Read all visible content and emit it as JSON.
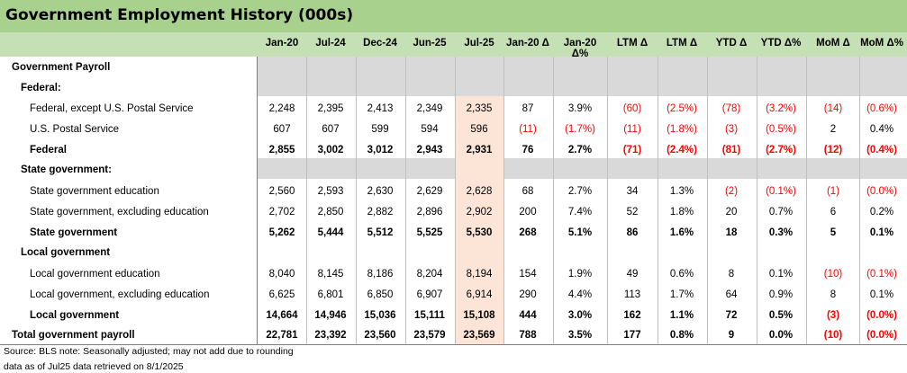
{
  "title": "Government Employment History (000s)",
  "columns": [
    "Jan-20",
    "Jul-24",
    "Dec-24",
    "Jun-25",
    "Jul-25",
    "Jan-20 Δ",
    "Jan-20 Δ%",
    "LTM Δ",
    "LTM Δ",
    "YTD Δ",
    "YTD Δ%",
    "MoM Δ",
    "MoM Δ%"
  ],
  "labels": {
    "gov_payroll": "Government Payroll",
    "federal_section": "Federal:",
    "state_section": "State government:",
    "local_section": "Local government"
  },
  "rows": [
    {
      "label": "Federal, except U.S. Postal Service",
      "bold": false,
      "values": [
        "2,248",
        "2,395",
        "2,413",
        "2,349",
        "2,335",
        "87",
        "3.9%",
        "(60)",
        "(2.5%)",
        "(78)",
        "(3.2%)",
        "(14)",
        "(0.6%)"
      ]
    },
    {
      "label": "U.S. Postal Service",
      "bold": false,
      "values": [
        "607",
        "607",
        "599",
        "594",
        "596",
        "(11)",
        "(1.7%)",
        "(11)",
        "(1.8%)",
        "(3)",
        "(0.5%)",
        "2",
        "0.4%"
      ]
    },
    {
      "label": "Federal",
      "bold": true,
      "values": [
        "2,855",
        "3,002",
        "3,012",
        "2,943",
        "2,931",
        "76",
        "2.7%",
        "(71)",
        "(2.4%)",
        "(81)",
        "(2.7%)",
        "(12)",
        "(0.4%)"
      ]
    },
    {
      "label": "State government education",
      "bold": false,
      "values": [
        "2,560",
        "2,593",
        "2,630",
        "2,629",
        "2,628",
        "68",
        "2.7%",
        "34",
        "1.3%",
        "(2)",
        "(0.1%)",
        "(1)",
        "(0.0%)"
      ]
    },
    {
      "label": "State government, excluding education",
      "bold": false,
      "values": [
        "2,702",
        "2,850",
        "2,882",
        "2,896",
        "2,902",
        "200",
        "7.4%",
        "52",
        "1.8%",
        "20",
        "0.7%",
        "6",
        "0.2%"
      ]
    },
    {
      "label": "State government",
      "bold": true,
      "values": [
        "5,262",
        "5,444",
        "5,512",
        "5,525",
        "5,530",
        "268",
        "5.1%",
        "86",
        "1.6%",
        "18",
        "0.3%",
        "5",
        "0.1%"
      ]
    },
    {
      "label": "Local government education",
      "bold": false,
      "values": [
        "8,040",
        "8,145",
        "8,186",
        "8,204",
        "8,194",
        "154",
        "1.9%",
        "49",
        "0.6%",
        "8",
        "0.1%",
        "(10)",
        "(0.1%)"
      ]
    },
    {
      "label": "Local government, excluding education",
      "bold": false,
      "values": [
        "6,625",
        "6,801",
        "6,850",
        "6,907",
        "6,914",
        "290",
        "4.4%",
        "113",
        "1.7%",
        "64",
        "0.9%",
        "8",
        "0.1%"
      ]
    },
    {
      "label": "Local government",
      "bold": true,
      "values": [
        "14,664",
        "14,946",
        "15,036",
        "15,111",
        "15,108",
        "444",
        "3.0%",
        "162",
        "1.1%",
        "72",
        "0.5%",
        "(3)",
        "(0.0%)"
      ]
    },
    {
      "label": "Total government payroll",
      "bold": true,
      "values": [
        "22,781",
        "23,392",
        "23,560",
        "23,579",
        "23,569",
        "788",
        "3.5%",
        "177",
        "0.8%",
        "9",
        "0.0%",
        "(10)",
        "(0.0%)"
      ]
    }
  ],
  "notes": {
    "line1": "Source: BLS   note: Seasonally adjusted; may not add due to rounding",
    "line2": "data as of Jul25    data retrieved on 8/1/2025"
  },
  "colors": {
    "title_bg": "#a9d18e",
    "header_bg": "#c5e0b4",
    "highlight": "#fce4d6",
    "section_bg": "#d9d9d9",
    "negative": "#ff0000"
  }
}
